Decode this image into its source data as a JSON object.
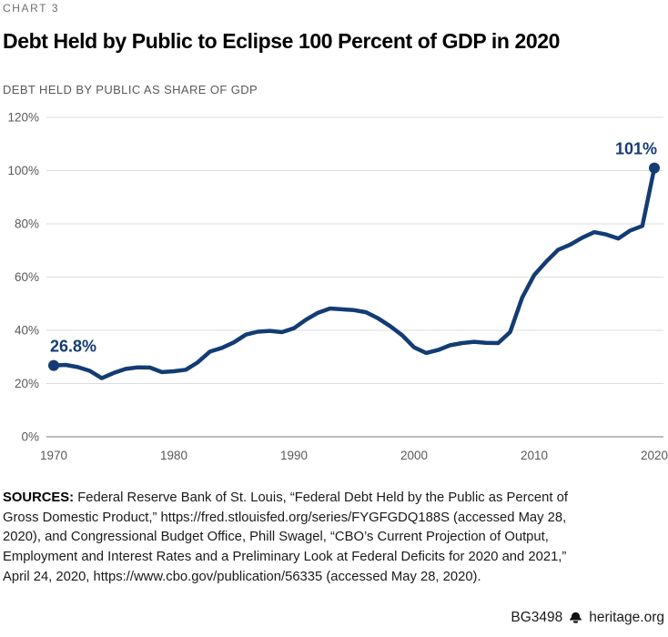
{
  "header": {
    "kicker": "CHART 3",
    "title": "Debt Held by Public to Eclipse 100 Percent of GDP in 2020",
    "subtitle": "DEBT HELD BY PUBLIC AS SHARE OF GDP"
  },
  "chart_data": {
    "type": "line",
    "title": "Debt Held by Public to Eclipse 100 Percent of GDP in 2020",
    "ylabel": "DEBT HELD BY PUBLIC AS SHARE OF GDP",
    "xlabel": "",
    "ylim": [
      0,
      120
    ],
    "ytick_step": 20,
    "ytick_labels": [
      "0%",
      "20%",
      "40%",
      "60%",
      "80%",
      "100%",
      "120%"
    ],
    "xlim": [
      1970,
      2020
    ],
    "xticks": [
      1970,
      1980,
      1990,
      2000,
      2010,
      2020
    ],
    "xtick_labels": [
      "1970",
      "1980",
      "1990",
      "2000",
      "2010",
      "2020"
    ],
    "grid": true,
    "legend": "none",
    "series_name": "Debt held by public as share of GDP",
    "x": [
      1970,
      1971,
      1972,
      1973,
      1974,
      1975,
      1976,
      1977,
      1978,
      1979,
      1980,
      1981,
      1982,
      1983,
      1984,
      1985,
      1986,
      1987,
      1988,
      1989,
      1990,
      1991,
      1992,
      1993,
      1994,
      1995,
      1996,
      1997,
      1998,
      1999,
      2000,
      2001,
      2002,
      2003,
      2004,
      2005,
      2006,
      2007,
      2008,
      2009,
      2010,
      2011,
      2012,
      2013,
      2014,
      2015,
      2016,
      2017,
      2018,
      2019,
      2020
    ],
    "values": [
      26.8,
      27.0,
      26.2,
      24.8,
      22.0,
      24.0,
      25.5,
      26.1,
      26.0,
      24.3,
      24.6,
      25.2,
      28.0,
      32.0,
      33.4,
      35.5,
      38.4,
      39.5,
      39.8,
      39.3,
      40.8,
      44.0,
      46.6,
      48.2,
      47.9,
      47.6,
      46.8,
      44.5,
      41.6,
      38.2,
      33.6,
      31.5,
      32.6,
      34.4,
      35.2,
      35.7,
      35.3,
      35.2,
      39.4,
      52.3,
      60.8,
      65.8,
      70.3,
      72.2,
      74.8,
      76.9,
      76.0,
      74.5,
      77.5,
      79.2,
      101
    ],
    "annotations": [
      {
        "text": "26.8%",
        "year": 1970,
        "value": 26.8,
        "anchor": "start"
      },
      {
        "text": "101%",
        "year": 2020,
        "value": 101,
        "anchor": "end"
      }
    ],
    "colors": {
      "accent": "#143c73",
      "grid": "#dcdddf",
      "axis": "#939598",
      "tick_text": "#58595b"
    }
  },
  "sources": {
    "label": "SOURCES:",
    "text": "Federal Reserve Bank of St. Louis, “Federal Debt Held by the Public as Percent of Gross Domestic Product,” https://fred.stlouisfed.org/series/FYGFGDQ188S (accessed May 28, 2020), and Congressional Budget Office, Phill Swagel, “CBO’s Current Projection of Output, Employment and Interest Rates and a Preliminary Look at Federal Deficits for 2020 and 2021,” April 24, 2020, https://www.cbo.gov/publication/56335 (accessed May 28, 2020)."
  },
  "footer": {
    "doc_id": "BG3498",
    "brand": "heritage.org",
    "brand_icon": "liberty-bell-icon"
  }
}
